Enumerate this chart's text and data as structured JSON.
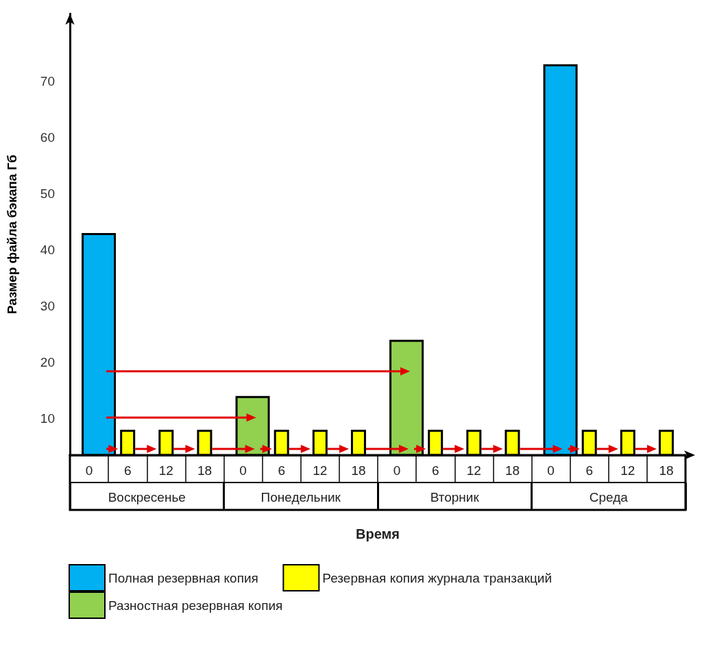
{
  "chart_data": {
    "type": "bar",
    "xlabel": "Время",
    "ylabel": "Размер файла бэкапа Гб",
    "categories": [
      "0",
      "6",
      "12",
      "18",
      "0",
      "6",
      "12",
      "18",
      "0",
      "6",
      "12",
      "18",
      "0",
      "6",
      "12",
      "18"
    ],
    "annotations": [
      "Воскресенье",
      "Понедельник",
      "Вторник",
      "Среда"
    ],
    "series": [
      {
        "name": "Полная резервная копия",
        "color": "#00b0f0",
        "values": [
          43,
          null,
          null,
          null,
          null,
          null,
          null,
          null,
          null,
          null,
          null,
          null,
          73,
          null,
          null,
          null
        ]
      },
      {
        "name": "Разностная резервная копия",
        "color": "#92d050",
        "values": [
          null,
          null,
          null,
          null,
          14,
          null,
          null,
          null,
          24,
          null,
          null,
          null,
          null,
          null,
          null,
          null
        ]
      },
      {
        "name": "Резервная копия журнала транзакций",
        "color": "#ffff00",
        "values": [
          null,
          8,
          8,
          8,
          null,
          8,
          8,
          8,
          null,
          8,
          8,
          8,
          null,
          8,
          8,
          8
        ]
      }
    ],
    "ylim": [
      3.5,
      82
    ],
    "yticks": [
      10,
      20,
      30,
      40,
      50,
      60,
      70
    ],
    "grid": false,
    "legend": "bottom left"
  }
}
